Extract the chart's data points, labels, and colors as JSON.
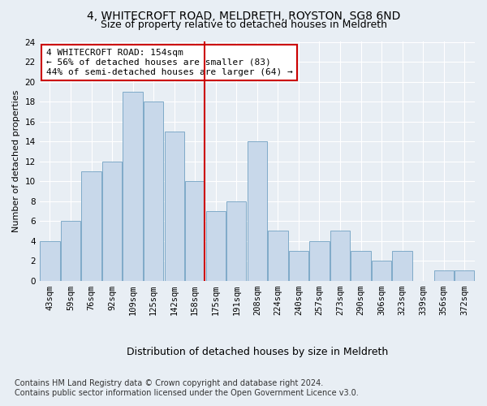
{
  "title1": "4, WHITECROFT ROAD, MELDRETH, ROYSTON, SG8 6ND",
  "title2": "Size of property relative to detached houses in Meldreth",
  "xlabel": "Distribution of detached houses by size in Meldreth",
  "ylabel": "Number of detached properties",
  "categories": [
    "43sqm",
    "59sqm",
    "76sqm",
    "92sqm",
    "109sqm",
    "125sqm",
    "142sqm",
    "158sqm",
    "175sqm",
    "191sqm",
    "208sqm",
    "224sqm",
    "240sqm",
    "257sqm",
    "273sqm",
    "290sqm",
    "306sqm",
    "323sqm",
    "339sqm",
    "356sqm",
    "372sqm"
  ],
  "values": [
    4,
    6,
    11,
    12,
    19,
    18,
    15,
    10,
    7,
    8,
    14,
    5,
    3,
    4,
    5,
    3,
    2,
    3,
    0,
    1,
    1
  ],
  "bar_color": "#c8d8ea",
  "bar_edge_color": "#7faac8",
  "property_line_index": 7,
  "annotation_line1": "4 WHITECROFT ROAD: 154sqm",
  "annotation_line2": "← 56% of detached houses are smaller (83)",
  "annotation_line3": "44% of semi-detached houses are larger (64) →",
  "annotation_box_color": "#ffffff",
  "annotation_box_edge": "#cc0000",
  "vline_color": "#cc0000",
  "ylim": [
    0,
    24
  ],
  "yticks": [
    0,
    2,
    4,
    6,
    8,
    10,
    12,
    14,
    16,
    18,
    20,
    22,
    24
  ],
  "footer1": "Contains HM Land Registry data © Crown copyright and database right 2024.",
  "footer2": "Contains public sector information licensed under the Open Government Licence v3.0.",
  "bg_color": "#e8eef4",
  "plot_bg_color": "#e8eef4",
  "grid_color": "#ffffff",
  "title1_fontsize": 10,
  "title2_fontsize": 9,
  "xlabel_fontsize": 9,
  "ylabel_fontsize": 8,
  "tick_fontsize": 7.5,
  "annotation_fontsize": 8,
  "footer_fontsize": 7
}
